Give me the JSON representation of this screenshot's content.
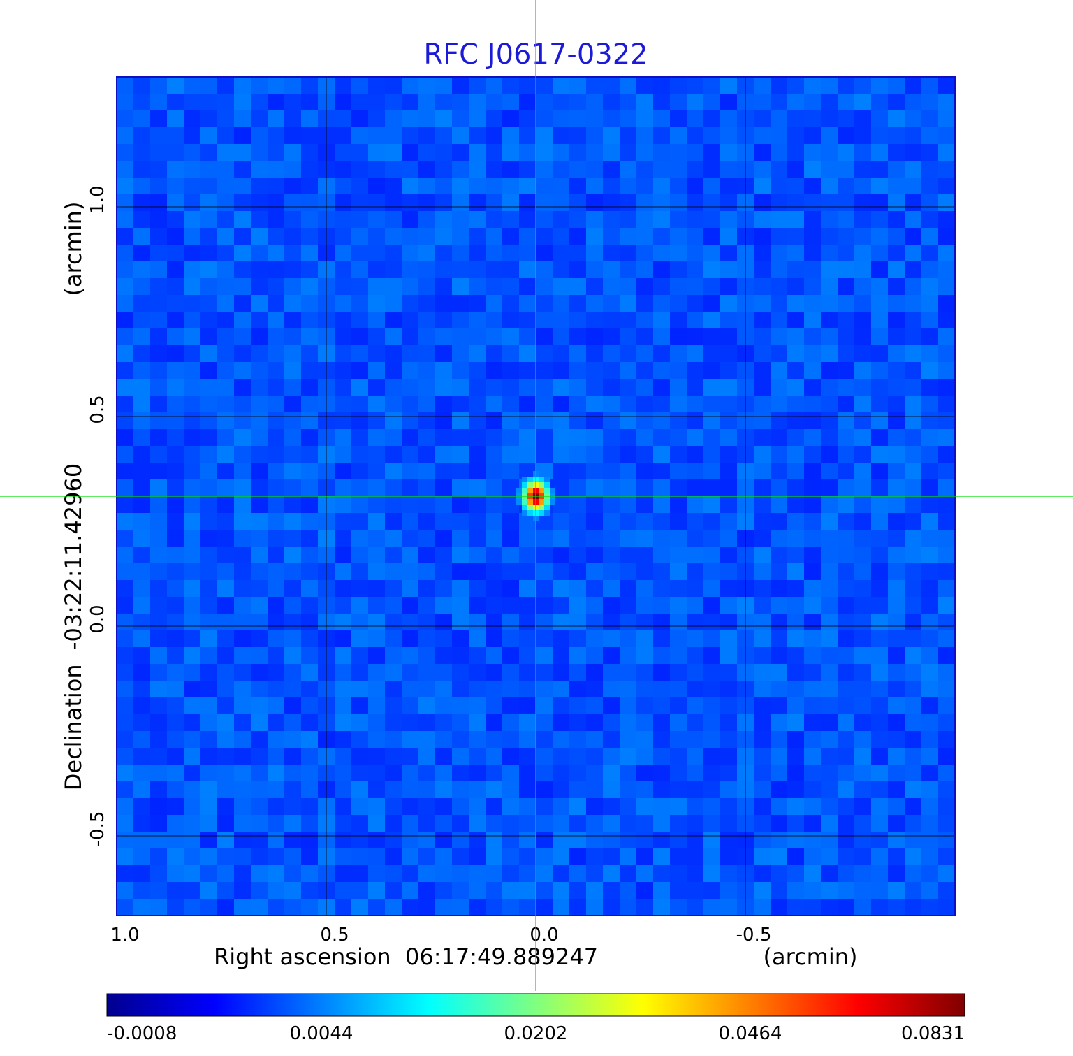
{
  "chart_data": {
    "type": "heatmap",
    "title": "RFC J0617-0322",
    "xlabel": "Right ascension  06:17:49.889247",
    "xunit": "(arcmin)",
    "ylabel": "Declination  -03:22:11.42960",
    "yunit": "(arcmin)",
    "xlim": [
      1.0,
      -1.0
    ],
    "ylim": [
      -0.69,
      1.31
    ],
    "x_ticks": [
      {
        "value": 1.0,
        "label": "1.0"
      },
      {
        "value": 0.5,
        "label": "0.5"
      },
      {
        "value": 0.0,
        "label": "0.0"
      },
      {
        "value": -0.5,
        "label": "-0.5"
      }
    ],
    "y_ticks": [
      {
        "value": 1.0,
        "label": "1.0"
      },
      {
        "value": 0.5,
        "label": "0.5"
      },
      {
        "value": 0.0,
        "label": "0.0"
      },
      {
        "value": -0.5,
        "label": "-0.5"
      }
    ],
    "grid": true,
    "colormap": "jet",
    "colorbar": {
      "orientation": "horizontal",
      "placement": "bottom",
      "ticks": [
        "-0.0008",
        "0.0044",
        "0.0202",
        "0.0464",
        "0.0831"
      ]
    },
    "source": {
      "x": 0.0,
      "y": 0.31,
      "peak": 0.0831
    },
    "crosshair": {
      "x": 0.0,
      "y": 0.31,
      "color": "#00e000"
    },
    "colors": {
      "title": "#1a1ad8",
      "frame": "#1010c0",
      "grid": "#000000",
      "crosshair": "#00e000"
    }
  }
}
